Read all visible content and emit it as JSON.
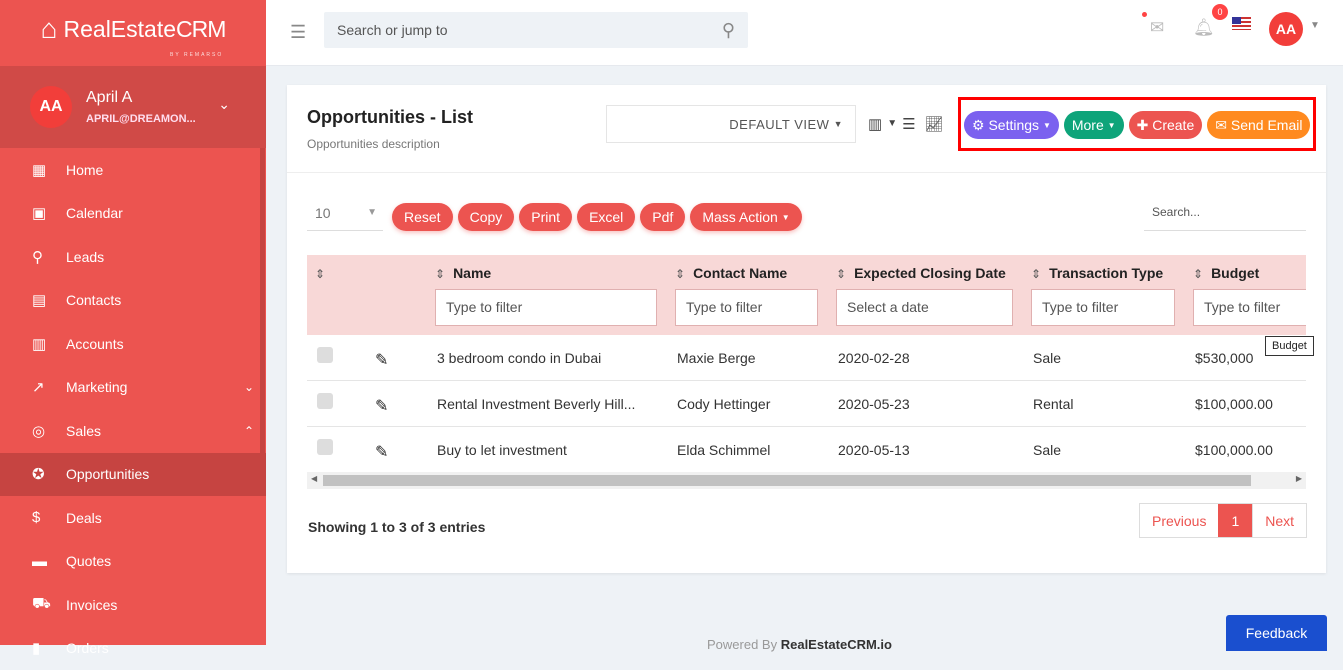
{
  "brand": {
    "name_light": "RealEstate",
    "name_bold": "CRM",
    "tagline": "BY REMARSO"
  },
  "user": {
    "initials": "AA",
    "name": "April A",
    "email": "APRIL@DREAMON..."
  },
  "sidebar": {
    "items": [
      {
        "label": "Home",
        "icon": "▦"
      },
      {
        "label": "Calendar",
        "icon": "▣"
      },
      {
        "label": "Leads",
        "icon": "⚲"
      },
      {
        "label": "Contacts",
        "icon": "▤"
      },
      {
        "label": "Accounts",
        "icon": "▥"
      },
      {
        "label": "Marketing",
        "icon": "↗",
        "arrow": "⌄"
      },
      {
        "label": "Sales",
        "icon": "◎",
        "arrow": "⌃"
      },
      {
        "label": "Opportunities",
        "icon": "✪",
        "active": true
      },
      {
        "label": "Deals",
        "icon": "$"
      },
      {
        "label": "Quotes",
        "icon": "▬"
      },
      {
        "label": "Invoices",
        "icon": "⛟"
      },
      {
        "label": "Orders",
        "icon": "▮"
      }
    ]
  },
  "topbar": {
    "search_placeholder": "Search or jump to",
    "notifications": "0",
    "avatar": "AA"
  },
  "page": {
    "title": "Opportunities - List",
    "description": "Opportunities description",
    "view": "DEFAULT VIEW"
  },
  "actions": {
    "settings": "Settings",
    "more": "More",
    "create": "Create",
    "send_email": "Send Email"
  },
  "colors": {
    "settings": "#7b61ef",
    "more": "#0ea47a",
    "create": "#ec5450",
    "send_email": "#ff8a1f",
    "accent": "#ec5450"
  },
  "toolbar": {
    "page_length": "10",
    "buttons": [
      "Reset",
      "Copy",
      "Print",
      "Excel",
      "Pdf",
      "Mass Action"
    ],
    "search_placeholder": "Search..."
  },
  "table": {
    "columns": [
      "Name",
      "Contact Name",
      "Expected Closing Date",
      "Transaction Type",
      "Budget"
    ],
    "filters": [
      "Type to filter",
      "Type to filter",
      "Select a date",
      "Type to filter",
      "Type to filter"
    ],
    "rows": [
      [
        "3 bedroom condo in Dubai",
        "Maxie Berge",
        "2020-02-28",
        "Sale",
        "$530,000"
      ],
      [
        "Rental Investment Beverly Hill...",
        "Cody Hettinger",
        "2020-05-23",
        "Rental",
        "$100,000.00"
      ],
      [
        "Buy to let investment",
        "Elda Schimmel",
        "2020-05-13",
        "Sale",
        "$100,000.00"
      ]
    ],
    "tooltip": "Budget"
  },
  "pagination": {
    "info": "Showing 1 to 3 of 3 entries",
    "previous": "Previous",
    "current": "1",
    "next": "Next"
  },
  "footer": {
    "prefix": "Powered By",
    "brand": "RealEstateCRM.io"
  },
  "feedback": "Feedback"
}
